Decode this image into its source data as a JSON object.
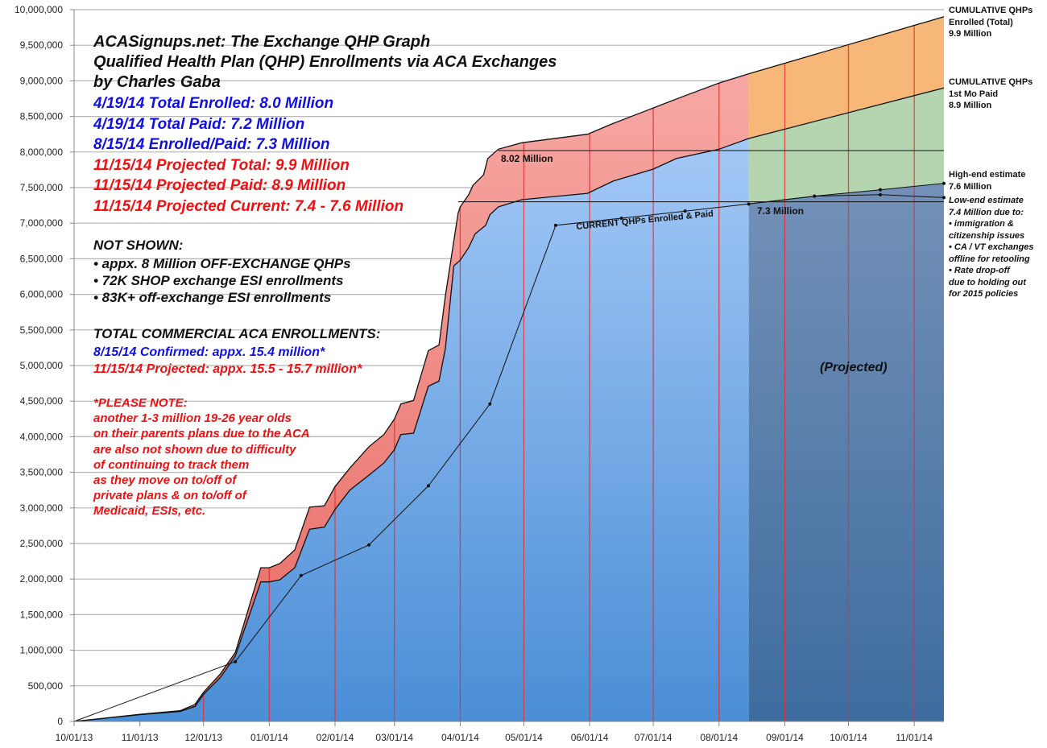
{
  "chart_data": {
    "type": "area",
    "ylim": [
      0,
      10000000
    ],
    "y_ticks": [
      "0",
      "500,000",
      "1,000,000",
      "1,500,000",
      "2,000,000",
      "2,500,000",
      "3,000,000",
      "3,500,000",
      "4,000,000",
      "4,500,000",
      "5,000,000",
      "5,500,000",
      "6,000,000",
      "6,500,000",
      "7,000,000",
      "7,500,000",
      "8,000,000",
      "8,500,000",
      "9,000,000",
      "9,500,000",
      "10,000,000"
    ],
    "x_ticks": [
      "10/01/13",
      "11/01/13",
      "12/01/13",
      "01/01/14",
      "02/01/14",
      "03/01/14",
      "04/01/14",
      "05/01/14",
      "06/01/14",
      "07/01/14",
      "08/01/14",
      "09/01/14",
      "10/01/14",
      "11/01/14"
    ],
    "xlim": [
      "10/01/13",
      "11/15/14"
    ],
    "grid": "horizontal",
    "projection_start": "08/15/14",
    "colors": {
      "enrolled": "#f4a09c",
      "paid": "#8fbcf2",
      "proj_enrolled": "#f7b779",
      "proj_paid": "#b4d5b0",
      "proj_current": "#4f78a6",
      "month_lines": "#e83030"
    },
    "series": [
      {
        "key": "enrolled",
        "points": [
          [
            "10/01/13",
            0
          ],
          [
            "11/01/13",
            100000
          ],
          [
            "11/20/13",
            150000
          ],
          [
            "11/27/13",
            240000
          ],
          [
            "12/01/13",
            410000
          ],
          [
            "12/09/13",
            670000
          ],
          [
            "12/16/13",
            970000
          ],
          [
            "12/28/13",
            2160000
          ],
          [
            "01/01/14",
            2160000
          ],
          [
            "01/06/14",
            2220000
          ],
          [
            "01/13/14",
            2410000
          ],
          [
            "01/20/14",
            3010000
          ],
          [
            "01/27/14",
            3030000
          ],
          [
            "02/01/14",
            3300000
          ],
          [
            "02/08/14",
            3560000
          ],
          [
            "02/17/14",
            3860000
          ],
          [
            "02/24/14",
            4030000
          ],
          [
            "03/01/14",
            4250000
          ],
          [
            "03/04/14",
            4460000
          ],
          [
            "03/10/14",
            4510000
          ],
          [
            "03/17/14",
            5210000
          ],
          [
            "03/22/14",
            5290000
          ],
          [
            "03/25/14",
            5980000
          ],
          [
            "03/31/14",
            7140000
          ],
          [
            "04/01/14",
            7230000
          ],
          [
            "04/05/14",
            7400000
          ],
          [
            "04/07/14",
            7530000
          ],
          [
            "04/12/14",
            7680000
          ],
          [
            "04/14/14",
            7910000
          ],
          [
            "04/19/14",
            8040000
          ],
          [
            "04/30/14",
            8130000
          ],
          [
            "05/31/14",
            8250000
          ],
          [
            "06/12/14",
            8400000
          ],
          [
            "06/25/14",
            8550000
          ],
          [
            "07/15/14",
            8780000
          ],
          [
            "08/01/14",
            8970000
          ],
          [
            "08/15/14",
            9100000
          ],
          [
            "11/15/14",
            9900000
          ]
        ]
      },
      {
        "key": "paid",
        "points": [
          [
            "10/01/13",
            0
          ],
          [
            "11/01/13",
            95000
          ],
          [
            "11/20/13",
            140000
          ],
          [
            "11/27/13",
            210000
          ],
          [
            "12/01/13",
            380000
          ],
          [
            "12/09/13",
            620000
          ],
          [
            "12/16/13",
            920000
          ],
          [
            "12/28/13",
            1960000
          ],
          [
            "01/01/14",
            1960000
          ],
          [
            "01/06/14",
            1990000
          ],
          [
            "01/13/14",
            2160000
          ],
          [
            "01/20/14",
            2700000
          ],
          [
            "01/27/14",
            2730000
          ],
          [
            "02/01/14",
            2980000
          ],
          [
            "02/08/14",
            3250000
          ],
          [
            "02/17/14",
            3460000
          ],
          [
            "02/24/14",
            3630000
          ],
          [
            "03/01/14",
            3820000
          ],
          [
            "03/04/14",
            4030000
          ],
          [
            "03/10/14",
            4050000
          ],
          [
            "03/17/14",
            4710000
          ],
          [
            "03/22/14",
            4780000
          ],
          [
            "03/25/14",
            5240000
          ],
          [
            "03/29/14",
            6400000
          ],
          [
            "04/01/14",
            6480000
          ],
          [
            "04/05/14",
            6660000
          ],
          [
            "04/08/14",
            6850000
          ],
          [
            "04/13/14",
            6970000
          ],
          [
            "04/15/14",
            7120000
          ],
          [
            "04/19/14",
            7230000
          ],
          [
            "04/30/14",
            7330000
          ],
          [
            "05/31/14",
            7420000
          ],
          [
            "06/12/14",
            7590000
          ],
          [
            "07/01/14",
            7760000
          ],
          [
            "07/12/14",
            7910000
          ],
          [
            "08/01/14",
            8040000
          ],
          [
            "08/15/14",
            8190000
          ],
          [
            "11/15/14",
            8900000
          ]
        ]
      },
      {
        "key": "current",
        "points": [
          [
            "10/01/13",
            0
          ],
          [
            "12/16/13",
            840000
          ],
          [
            "01/16/14",
            2050000
          ],
          [
            "02/17/14",
            2480000
          ],
          [
            "03/17/14",
            3310000
          ],
          [
            "04/15/14",
            4460000
          ],
          [
            "05/16/14",
            6970000
          ],
          [
            "06/16/14",
            7070000
          ],
          [
            "07/16/14",
            7170000
          ],
          [
            "08/15/14",
            7270000
          ]
        ]
      },
      {
        "key": "high_end",
        "points": [
          [
            "08/15/14",
            7270000
          ],
          [
            "09/15/14",
            7380000
          ],
          [
            "10/16/14",
            7470000
          ],
          [
            "11/15/14",
            7560000
          ]
        ]
      },
      {
        "key": "low_end",
        "points": [
          [
            "08/15/14",
            7270000
          ],
          [
            "09/15/14",
            7380000
          ],
          [
            "10/16/14",
            7400000
          ],
          [
            "11/15/14",
            7360000
          ]
        ]
      }
    ],
    "reference_lines": [
      {
        "value": 8020000,
        "from": "04/19/14"
      },
      {
        "value": 7300000,
        "from": "03/31/14"
      }
    ],
    "annotations": {
      "title": [
        "ACASignups.net: The Exchange QHP Graph",
        "Qualified Health Plan (QHP) Enrollments via ACA Exchanges",
        "by Charles Gaba"
      ],
      "stats_blue": [
        "4/19/14 Total Enrolled: 8.0 Million",
        "4/19/14 Total Paid: 7.2 Million",
        "8/15/14 Enrolled/Paid: 7.3 Million"
      ],
      "stats_red": [
        "11/15/14 Projected Total: 9.9 Million",
        "11/15/14 Projected Paid: 8.9 Million",
        "11/15/14 Projected Current: 7.4 - 7.6 Million"
      ],
      "not_shown_title": "NOT SHOWN:",
      "not_shown": [
        "• appx. 8 Million OFF-EXCHANGE QHPs",
        "• 72K SHOP exchange ESI enrollments",
        "• 83K+ off-exchange ESI enrollments"
      ],
      "total_title": "TOTAL COMMERCIAL ACA ENROLLMENTS:",
      "total_confirmed": "8/15/14 Confirmed: appx. 15.4 million*",
      "total_projected": "11/15/14 Projected: appx. 15.5 - 15.7 million*",
      "note": [
        "*PLEASE NOTE:",
        "another 1-3 million 19-26 year olds",
        "on their parents plans due to the ACA",
        "are also not shown due to difficulty",
        "of continuing to track them",
        "as they move on to/off of",
        "private plans & on to/off of",
        "Medicaid, ESIs, etc."
      ],
      "label_802": "8.02 Million",
      "label_73": "7.3 Million",
      "label_current": "CURRENT QHPs Enrolled & Paid",
      "label_projected": "(Projected)",
      "right_enrolled": [
        "CUMULATIVE QHPs",
        "Enrolled (Total)",
        "9.9 Million"
      ],
      "right_paid": [
        "CUMULATIVE QHPs",
        "1st Mo Paid",
        "8.9 Million"
      ],
      "right_high": [
        "High-end estimate",
        "7.6 Million"
      ],
      "right_low": [
        "Low-end estimate",
        "7.4 Million due to:",
        "• immigration &",
        "citizenship issues",
        "• CA / VT exchanges",
        "offline for retooling",
        "• Rate drop-off",
        "due to holding out",
        "for 2015 policies"
      ]
    }
  }
}
